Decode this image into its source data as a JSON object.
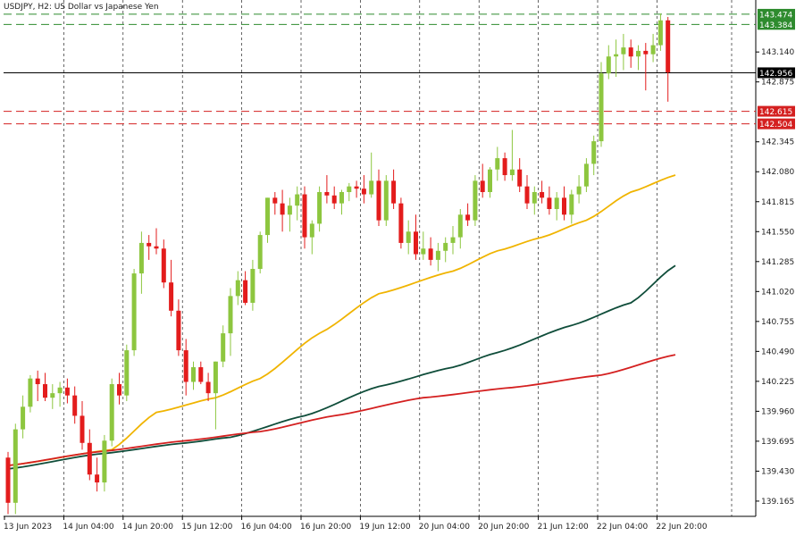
{
  "chart_title": "USDJPY, H2:  US Dollar vs Japanese Yen",
  "colors": {
    "bull": "#8dc63f",
    "bear": "#e31c1c",
    "ma_fast": "#f0b400",
    "ma_mid": "#0f4d3a",
    "ma_slow": "#d42020",
    "resistance_line": "#2e8b2e",
    "support_line": "#d42020",
    "current_line": "#000000"
  },
  "chart_data": {
    "type": "candlestick",
    "symbol": "USDJPY",
    "timeframe": "H2",
    "title": "USDJPY, H2:  US Dollar vs Japanese Yen",
    "ylim": [
      139.03,
      143.6
    ],
    "y_ticks": [
      "143.140",
      "142.875",
      "142.345",
      "142.080",
      "141.815",
      "141.550",
      "141.285",
      "141.020",
      "140.755",
      "140.490",
      "140.225",
      "139.960",
      "139.695",
      "139.430",
      "139.165"
    ],
    "x_ticks": [
      "13 Jun 2023",
      "14 Jun 04:00",
      "14 Jun 20:00",
      "15 Jun 12:00",
      "16 Jun 04:00",
      "16 Jun 20:00",
      "19 Jun 12:00",
      "20 Jun 04:00",
      "20 Jun 20:00",
      "21 Jun 12:00",
      "22 Jun 04:00",
      "22 Jun 20:00"
    ],
    "x_tick_bar_index": [
      0,
      8,
      16,
      24,
      32,
      40,
      48,
      56,
      64,
      72,
      80,
      88
    ],
    "grid": "vertical dashed",
    "candles": [
      [
        139.55,
        139.6,
        139.05,
        139.15
      ],
      [
        139.15,
        139.85,
        139.05,
        139.8
      ],
      [
        139.8,
        140.1,
        139.72,
        140.0
      ],
      [
        140.0,
        140.28,
        139.95,
        140.25
      ],
      [
        140.25,
        140.32,
        140.05,
        140.2
      ],
      [
        140.2,
        140.3,
        140.05,
        140.08
      ],
      [
        140.08,
        140.2,
        139.98,
        140.12
      ],
      [
        140.12,
        140.22,
        140.0,
        140.17
      ],
      [
        140.17,
        140.25,
        140.03,
        140.1
      ],
      [
        140.1,
        140.18,
        139.85,
        139.92
      ],
      [
        139.92,
        140.05,
        139.62,
        139.68
      ],
      [
        139.68,
        139.8,
        139.35,
        139.4
      ],
      [
        139.4,
        139.55,
        139.25,
        139.33
      ],
      [
        139.33,
        139.75,
        139.25,
        139.7
      ],
      [
        139.7,
        140.25,
        139.65,
        140.2
      ],
      [
        140.2,
        140.3,
        140.02,
        140.1
      ],
      [
        140.1,
        140.55,
        140.05,
        140.5
      ],
      [
        140.5,
        141.22,
        140.45,
        141.18
      ],
      [
        141.18,
        141.55,
        141.0,
        141.45
      ],
      [
        141.45,
        141.52,
        141.3,
        141.42
      ],
      [
        141.42,
        141.58,
        141.35,
        141.4
      ],
      [
        141.4,
        141.48,
        141.05,
        141.1
      ],
      [
        141.1,
        141.3,
        140.8,
        140.85
      ],
      [
        140.85,
        140.95,
        140.45,
        140.5
      ],
      [
        140.5,
        140.6,
        140.1,
        140.22
      ],
      [
        140.22,
        140.4,
        140.15,
        140.35
      ],
      [
        140.35,
        140.4,
        140.2,
        140.22
      ],
      [
        140.22,
        140.3,
        140.05,
        140.12
      ],
      [
        140.12,
        140.4,
        139.8,
        140.4
      ],
      [
        140.4,
        140.72,
        140.35,
        140.65
      ],
      [
        140.65,
        141.05,
        140.45,
        140.98
      ],
      [
        140.98,
        141.2,
        140.9,
        141.12
      ],
      [
        141.12,
        141.2,
        140.9,
        140.92
      ],
      [
        140.92,
        141.3,
        140.85,
        141.22
      ],
      [
        141.22,
        141.55,
        141.18,
        141.52
      ],
      [
        141.52,
        141.85,
        141.45,
        141.85
      ],
      [
        141.85,
        141.9,
        141.7,
        141.8
      ],
      [
        141.8,
        141.92,
        141.55,
        141.7
      ],
      [
        141.7,
        141.85,
        141.55,
        141.78
      ],
      [
        141.78,
        141.95,
        141.65,
        141.88
      ],
      [
        141.88,
        141.95,
        141.4,
        141.5
      ],
      [
        141.5,
        141.65,
        141.35,
        141.62
      ],
      [
        141.62,
        141.95,
        141.55,
        141.9
      ],
      [
        141.9,
        142.05,
        141.8,
        141.87
      ],
      [
        141.87,
        141.95,
        141.75,
        141.8
      ],
      [
        141.8,
        141.92,
        141.7,
        141.9
      ],
      [
        141.9,
        141.98,
        141.82,
        141.95
      ],
      [
        141.95,
        142.0,
        141.85,
        141.93
      ],
      [
        141.93,
        142.05,
        141.8,
        141.88
      ],
      [
        141.88,
        142.25,
        141.85,
        142.0
      ],
      [
        142.0,
        142.1,
        141.6,
        141.65
      ],
      [
        141.65,
        142.05,
        141.6,
        142.0
      ],
      [
        142.0,
        142.1,
        141.75,
        141.8
      ],
      [
        141.8,
        141.85,
        141.4,
        141.45
      ],
      [
        141.45,
        141.65,
        141.35,
        141.55
      ],
      [
        141.55,
        141.7,
        141.3,
        141.35
      ],
      [
        141.35,
        141.55,
        141.3,
        141.4
      ],
      [
        141.4,
        141.5,
        141.25,
        141.3
      ],
      [
        141.3,
        141.45,
        141.2,
        141.38
      ],
      [
        141.38,
        141.5,
        141.28,
        141.45
      ],
      [
        141.45,
        141.6,
        141.35,
        141.5
      ],
      [
        141.5,
        141.75,
        141.4,
        141.7
      ],
      [
        141.7,
        141.8,
        141.6,
        141.65
      ],
      [
        141.65,
        142.05,
        141.6,
        142.0
      ],
      [
        142.0,
        142.15,
        141.85,
        141.9
      ],
      [
        141.9,
        142.12,
        141.85,
        142.1
      ],
      [
        142.1,
        142.3,
        142.0,
        142.2
      ],
      [
        142.2,
        142.25,
        142.0,
        142.05
      ],
      [
        142.05,
        142.45,
        142.0,
        142.1
      ],
      [
        142.1,
        142.2,
        141.9,
        141.95
      ],
      [
        141.95,
        142.05,
        141.75,
        141.8
      ],
      [
        141.8,
        141.95,
        141.7,
        141.9
      ],
      [
        141.9,
        142.0,
        141.8,
        141.85
      ],
      [
        141.85,
        141.95,
        141.7,
        141.75
      ],
      [
        141.75,
        141.9,
        141.65,
        141.85
      ],
      [
        141.85,
        141.95,
        141.65,
        141.7
      ],
      [
        141.7,
        141.92,
        141.62,
        141.88
      ],
      [
        141.88,
        142.05,
        141.8,
        141.95
      ],
      [
        141.95,
        142.2,
        141.9,
        142.15
      ],
      [
        142.15,
        142.4,
        142.05,
        142.35
      ],
      [
        142.35,
        143.05,
        142.3,
        142.95
      ],
      [
        142.95,
        143.2,
        142.9,
        143.1
      ],
      [
        143.1,
        143.25,
        142.92,
        143.12
      ],
      [
        143.12,
        143.3,
        142.98,
        143.18
      ],
      [
        143.18,
        143.25,
        143.0,
        143.1
      ],
      [
        143.1,
        143.2,
        142.98,
        143.15
      ],
      [
        143.15,
        143.22,
        142.8,
        143.12
      ],
      [
        143.12,
        143.3,
        143.05,
        143.2
      ],
      [
        143.2,
        143.48,
        143.15,
        143.42
      ],
      [
        143.42,
        143.45,
        142.7,
        142.96
      ]
    ],
    "series": [
      {
        "name": "",
        "type": "line",
        "color": "#f0b400",
        "anchors": [
          [
            0,
            139.48
          ],
          [
            14,
            139.62
          ],
          [
            20,
            139.95
          ],
          [
            28,
            140.08
          ],
          [
            34,
            140.25
          ],
          [
            42,
            140.65
          ],
          [
            50,
            141.0
          ],
          [
            60,
            141.2
          ],
          [
            66,
            141.38
          ],
          [
            72,
            141.5
          ],
          [
            78,
            141.65
          ],
          [
            84,
            141.9
          ],
          [
            90,
            142.05
          ]
        ]
      },
      {
        "name": "",
        "type": "line",
        "color": "#0f4d3a",
        "anchors": [
          [
            0,
            139.45
          ],
          [
            12,
            139.58
          ],
          [
            24,
            139.68
          ],
          [
            30,
            139.73
          ],
          [
            40,
            139.92
          ],
          [
            50,
            140.18
          ],
          [
            60,
            140.35
          ],
          [
            66,
            140.48
          ],
          [
            76,
            140.72
          ],
          [
            84,
            140.92
          ],
          [
            90,
            141.25
          ]
        ]
      },
      {
        "name": "",
        "type": "line",
        "color": "#d42020",
        "anchors": [
          [
            0,
            139.48
          ],
          [
            12,
            139.6
          ],
          [
            24,
            139.7
          ],
          [
            34,
            139.78
          ],
          [
            44,
            139.92
          ],
          [
            56,
            140.08
          ],
          [
            68,
            140.17
          ],
          [
            80,
            140.28
          ],
          [
            90,
            140.46
          ]
        ]
      }
    ],
    "levels": {
      "resistance": [
        "143.474",
        "143.384"
      ],
      "current": "142.956",
      "support": [
        "142.615",
        "142.504"
      ]
    }
  }
}
